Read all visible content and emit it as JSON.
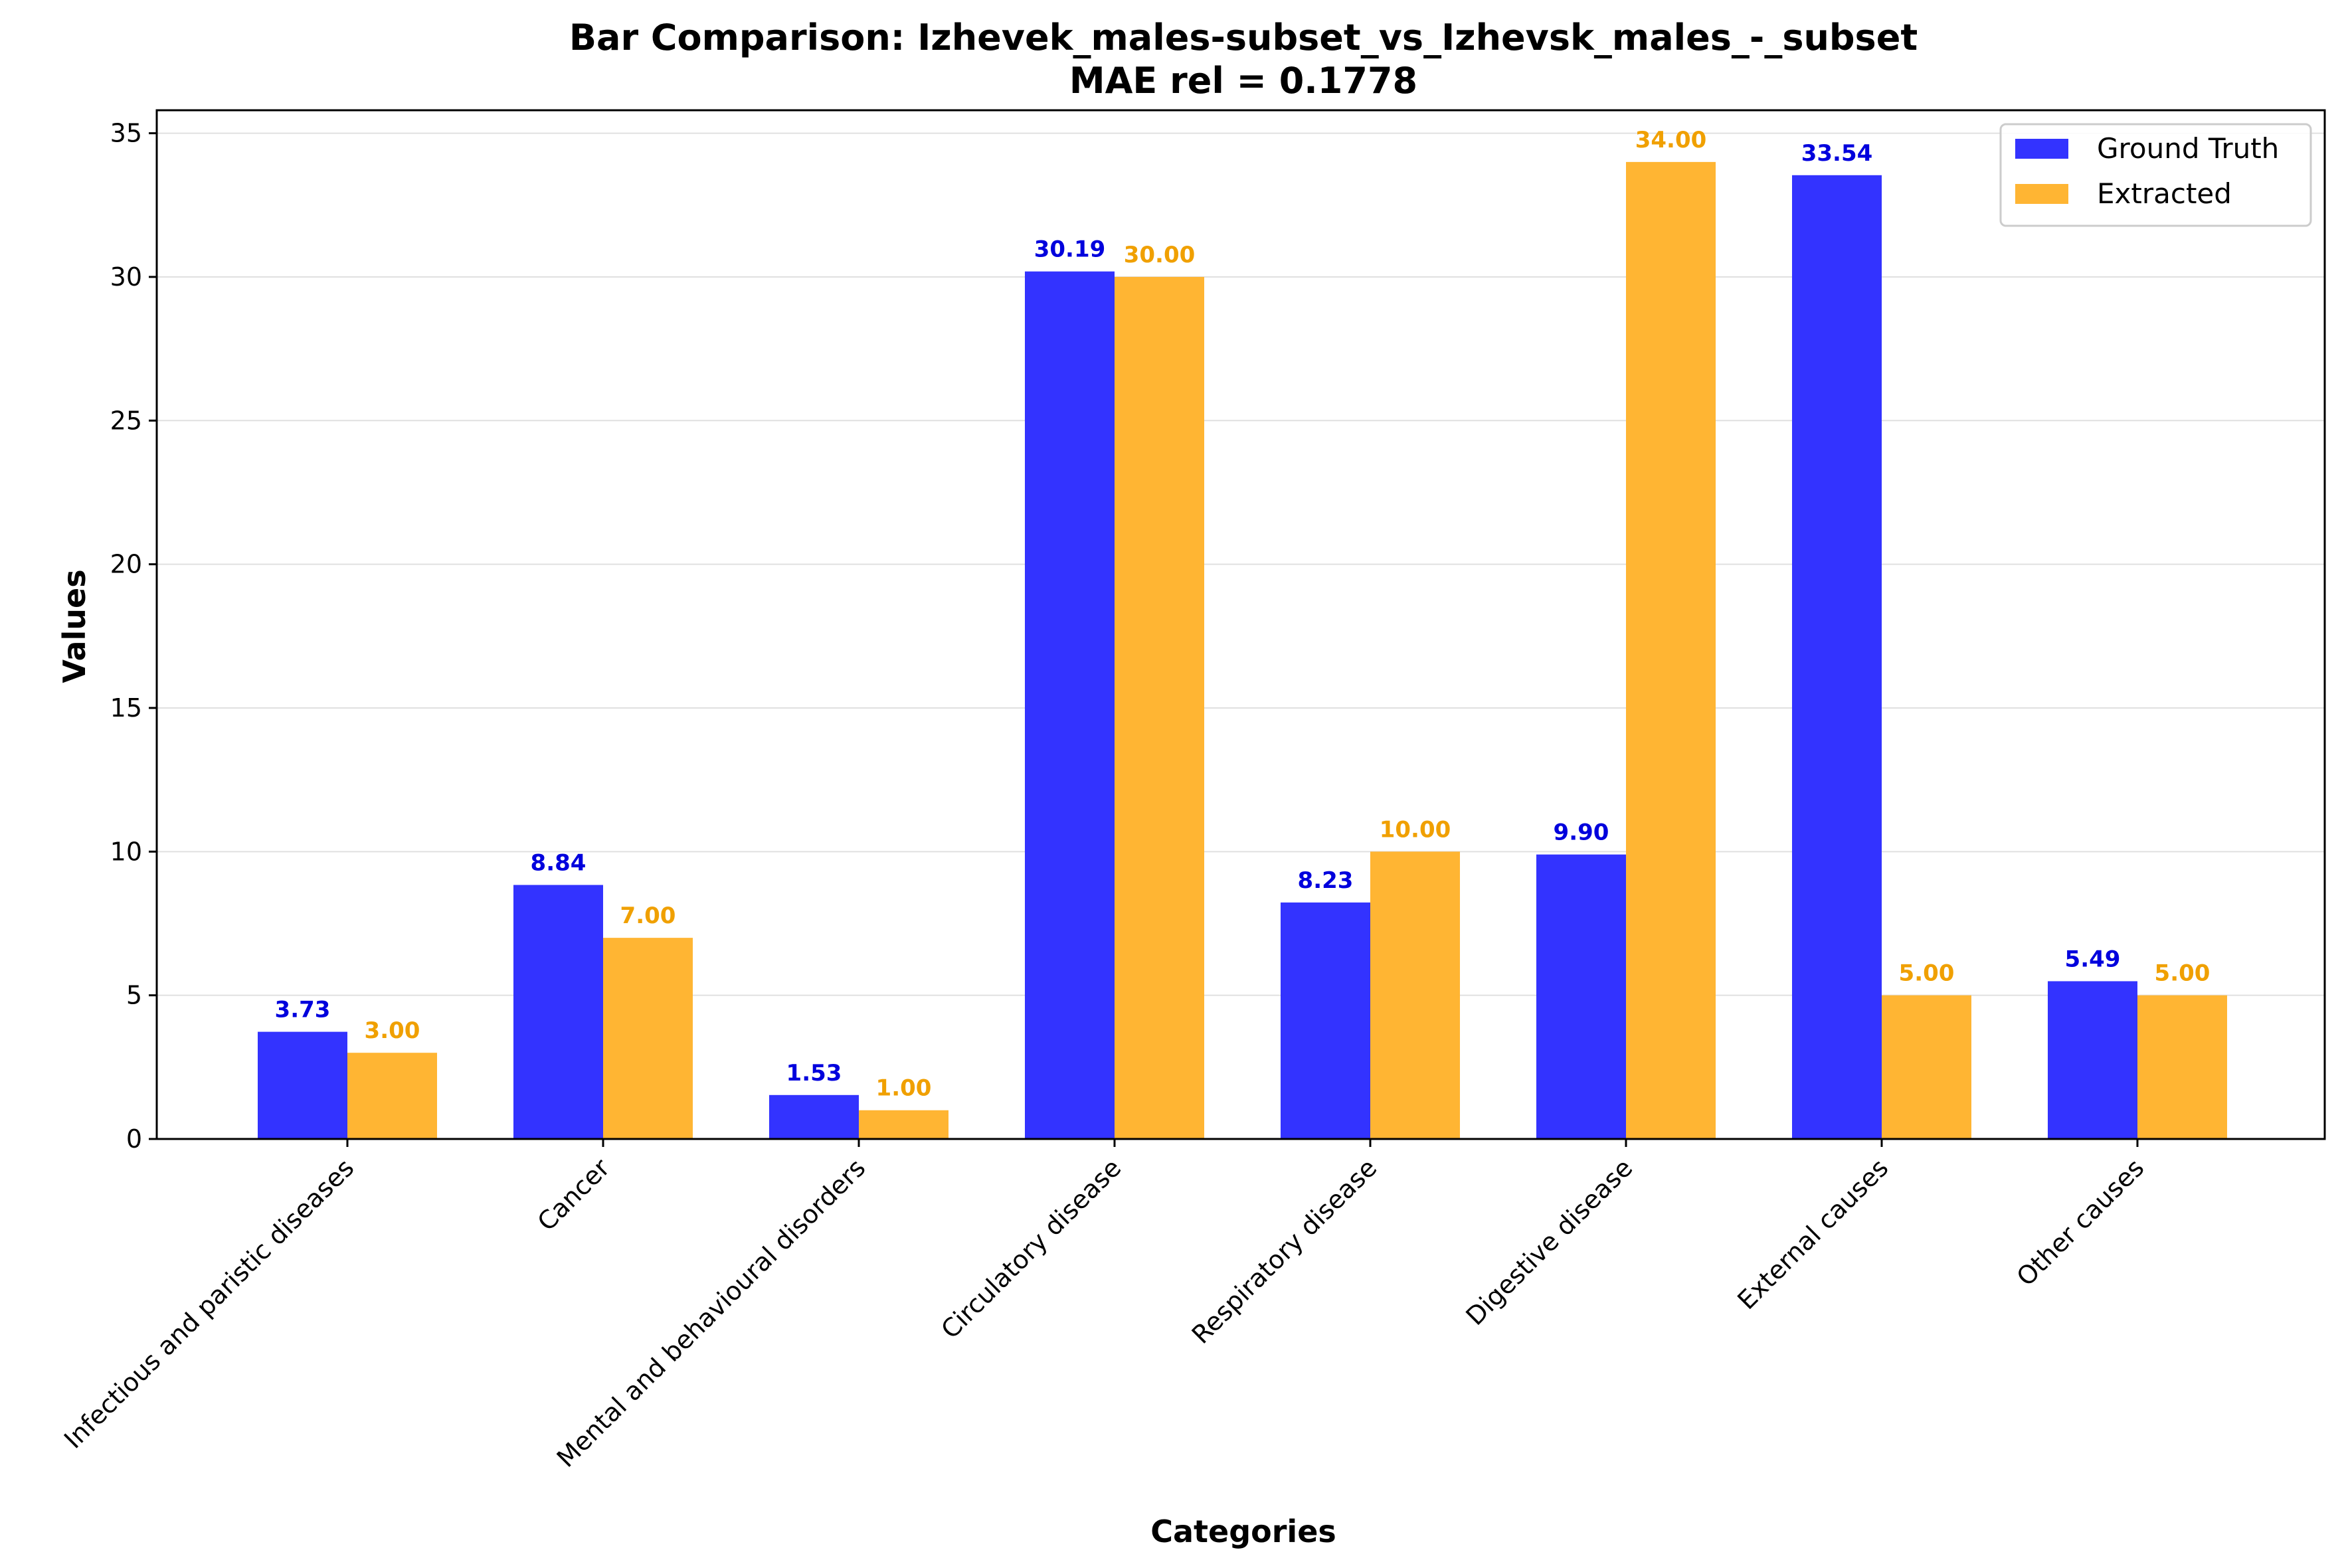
{
  "chart_data": {
    "type": "bar",
    "title": "Bar Comparison: Izhevek_males-subset_vs_Izhevsk_males_-_subset",
    "subtitle": "MAE rel = 0.1778",
    "xlabel": "Categories",
    "ylabel": "Values",
    "ylim": [
      0,
      35.8
    ],
    "yticks": [
      0,
      5,
      10,
      15,
      20,
      25,
      30,
      35
    ],
    "grid": true,
    "legend_position": "top-right",
    "categories": [
      "Infectious and paristic diseases",
      "Cancer",
      "Mental and behavioural disorders",
      "Circulatory disease",
      "Respiratory disease",
      "Digestive disease",
      "External causes",
      "Other causes"
    ],
    "series": [
      {
        "name": "Ground Truth",
        "color": "#3333ff",
        "label_color": "#0000dd",
        "values": [
          3.73,
          8.84,
          1.53,
          30.19,
          8.23,
          9.9,
          33.54,
          5.49
        ],
        "labels": [
          "3.73",
          "8.84",
          "1.53",
          "30.19",
          "8.23",
          "9.90",
          "33.54",
          "5.49"
        ]
      },
      {
        "name": "Extracted",
        "color": "#ffb533",
        "label_color": "#f0a000",
        "values": [
          3.0,
          7.0,
          1.0,
          30.0,
          10.0,
          34.0,
          5.0,
          5.0
        ],
        "labels": [
          "3.00",
          "7.00",
          "1.00",
          "30.00",
          "10.00",
          "34.00",
          "5.00",
          "5.00"
        ]
      }
    ]
  }
}
